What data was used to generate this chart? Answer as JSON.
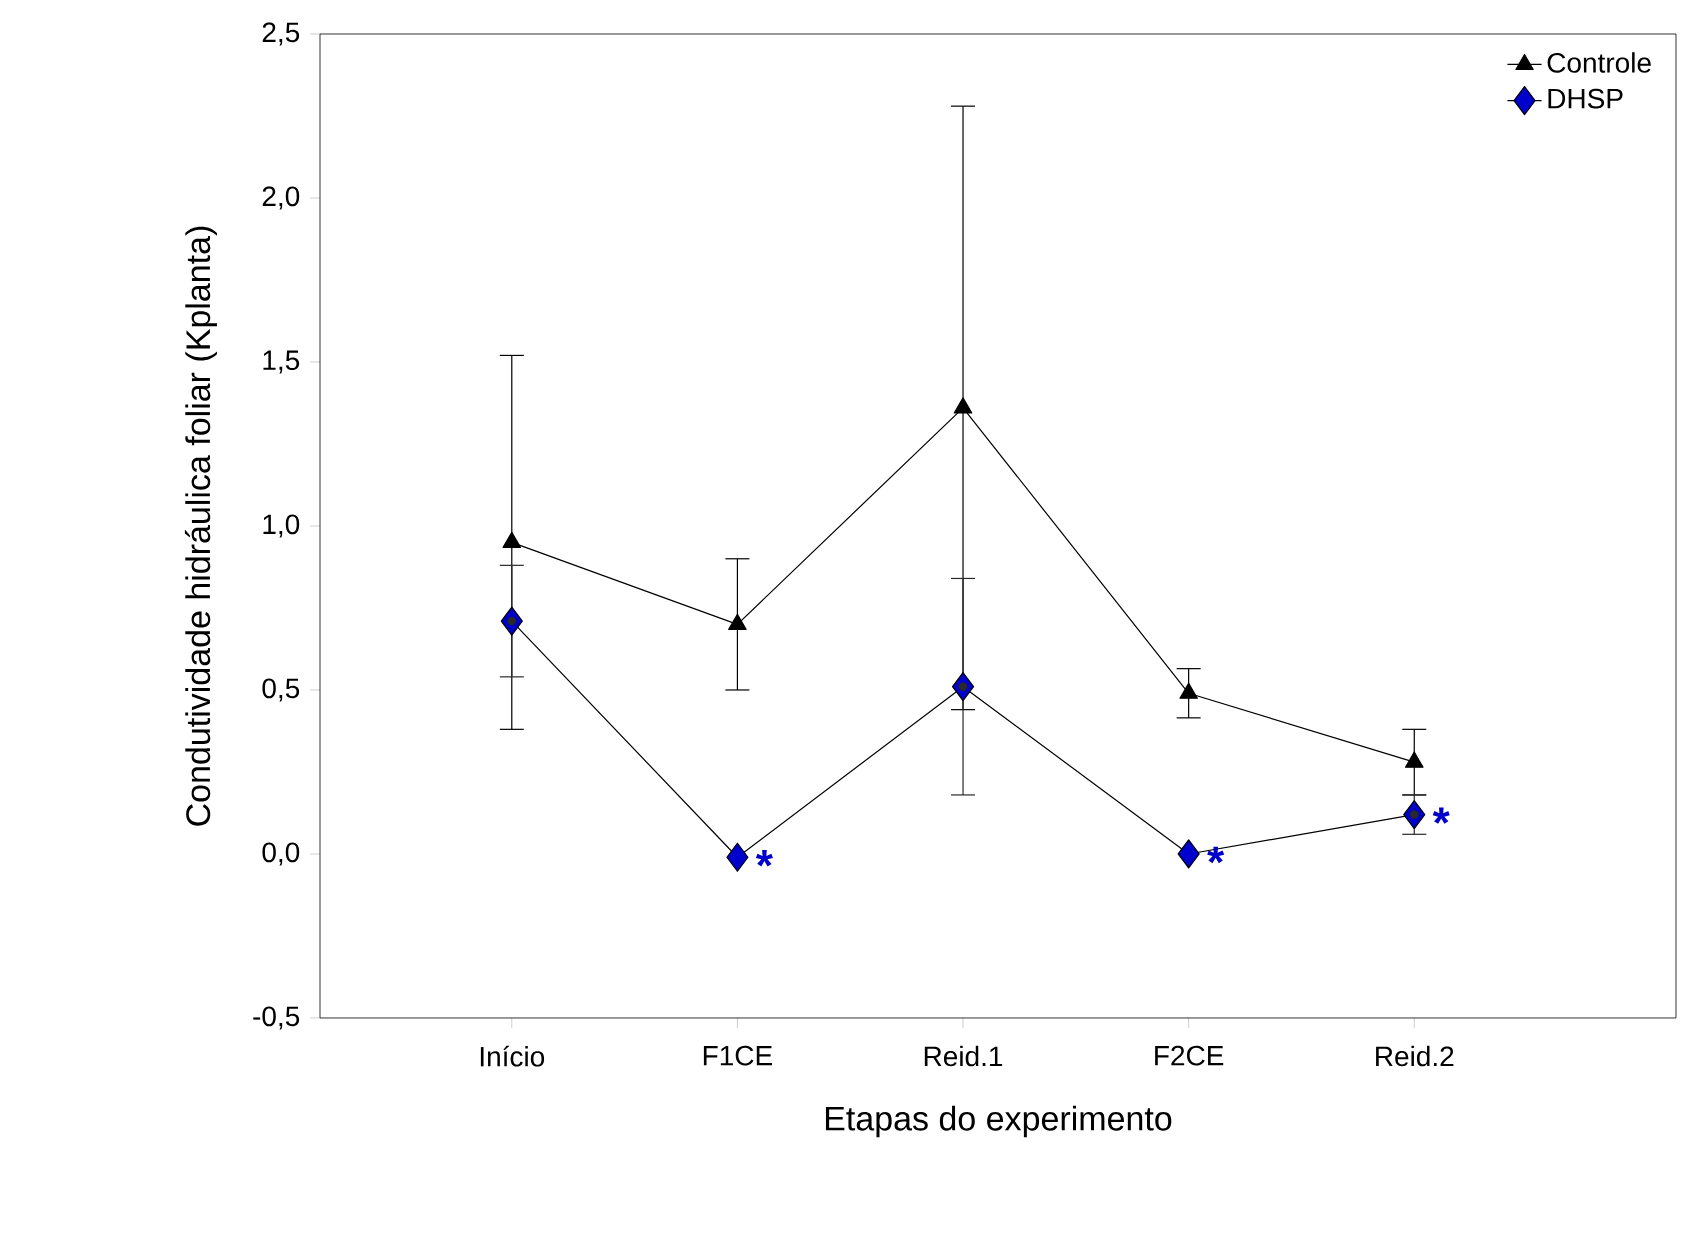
{
  "chart_data": {
    "type": "line",
    "xlabel": "Etapas do experimento",
    "ylabel": "Condutividade hidráulica foliar (Kplanta)",
    "categories": [
      "Início",
      "F1CE",
      "Reid.1",
      "F2CE",
      "Reid.2"
    ],
    "ylim": [
      -0.5,
      2.5
    ],
    "yticks": [
      {
        "value": -0.5,
        "label": "-0,5"
      },
      {
        "value": 0,
        "label": "0,0"
      },
      {
        "value": 0.5,
        "label": "0,5"
      },
      {
        "value": 1,
        "label": "1,0"
      },
      {
        "value": 1.5,
        "label": "1,5"
      },
      {
        "value": 2,
        "label": "2,0"
      },
      {
        "value": 2.5,
        "label": "2,5"
      }
    ],
    "series": [
      {
        "name": "Controle",
        "color": "#000000",
        "marker": "triangle",
        "values": [
          0.95,
          0.7,
          1.36,
          0.49,
          0.28
        ],
        "errors": [
          0.57,
          0.2,
          0.92,
          0.075,
          0.1
        ]
      },
      {
        "name": "DHSP",
        "color": "#0000cc",
        "marker": "diamond",
        "values": [
          0.71,
          -0.01,
          0.51,
          0.0,
          0.12
        ],
        "errors": [
          0.17,
          null,
          0.33,
          null,
          0.06
        ]
      }
    ],
    "annotations": [
      {
        "text": "*",
        "x": "F1CE",
        "y": -0.01
      },
      {
        "text": "*",
        "x": "F2CE",
        "y": 0.0
      },
      {
        "text": "*",
        "x": "Reid.2",
        "y": 0.12
      }
    ],
    "legend": "top right",
    "grid": false,
    "line_style": "solid"
  }
}
